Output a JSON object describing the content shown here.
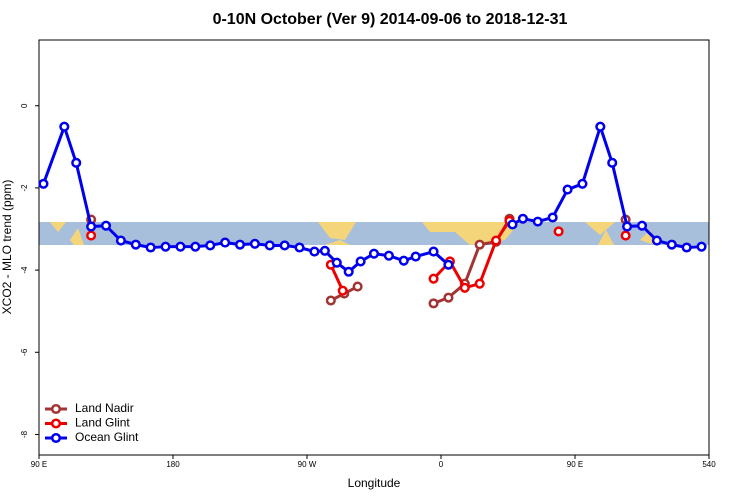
{
  "chart_data": {
    "type": "line",
    "title": "0-10N October (Ver 9)   2014-09-06 to 2018-12-31",
    "x_label": "Longitude",
    "y_label": "XCO2 - MLO trend (ppm)",
    "xlim": [
      90,
      540
    ],
    "ylim": [
      -8.5,
      1.6
    ],
    "xticks": [
      {
        "value": 90,
        "label": "90 E"
      },
      180,
      {
        "value": 270,
        "label": "90 W"
      },
      {
        "value": 360,
        "label": "0"
      },
      {
        "value": 450,
        "label": "90 E"
      },
      540
    ],
    "yticks": [
      0,
      -2,
      -4,
      -6,
      -8
    ],
    "legend": "bottomleft",
    "series": [
      {
        "name": "Land Nadir",
        "color": "#a33434",
        "x": [
          125,
          null,
          286,
          295,
          304,
          null,
          355,
          365,
          376,
          386,
          397,
          406,
          null,
          484
        ],
        "values": [
          -2.77,
          null,
          -4.74,
          -4.57,
          -4.4,
          null,
          -4.81,
          -4.67,
          -4.33,
          -3.38,
          -3.31,
          -2.75,
          null,
          -2.77
        ]
      },
      {
        "name": "Land Glint",
        "color": "#ee0000",
        "x": [
          125,
          null,
          286,
          294,
          null,
          355,
          366,
          376,
          386,
          397,
          406,
          null,
          439,
          null,
          484
        ],
        "values": [
          -3.16,
          null,
          -3.87,
          -4.5,
          null,
          -4.21,
          -3.79,
          -4.43,
          -4.33,
          -3.28,
          -2.8,
          null,
          -3.06,
          null,
          -3.16
        ]
      },
      {
        "name": "Ocean Glint",
        "color": "#0000ee",
        "x": [
          93,
          107,
          115,
          125,
          135,
          145,
          155,
          165,
          175,
          185,
          195,
          205,
          215,
          225,
          235,
          245,
          255,
          265,
          275,
          282,
          290,
          298,
          306,
          315,
          325,
          335,
          343,
          355,
          365,
          null,
          408,
          415,
          425,
          435,
          445,
          455,
          467,
          475,
          485,
          495,
          505,
          515,
          525,
          535
        ],
        "values": [
          -1.9,
          -0.51,
          -1.39,
          -2.94,
          -2.92,
          -3.28,
          -3.38,
          -3.45,
          -3.43,
          -3.43,
          -3.43,
          -3.4,
          -3.33,
          -3.38,
          -3.36,
          -3.4,
          -3.4,
          -3.45,
          -3.55,
          -3.53,
          -3.82,
          -4.04,
          -3.79,
          -3.6,
          -3.65,
          -3.77,
          -3.67,
          -3.55,
          -3.87,
          null,
          -2.89,
          -2.75,
          -2.82,
          -2.72,
          -2.04,
          -1.9,
          -0.51,
          -1.39,
          -2.94,
          -2.92,
          -3.28,
          -3.38,
          -3.45,
          -3.43
        ]
      }
    ]
  }
}
